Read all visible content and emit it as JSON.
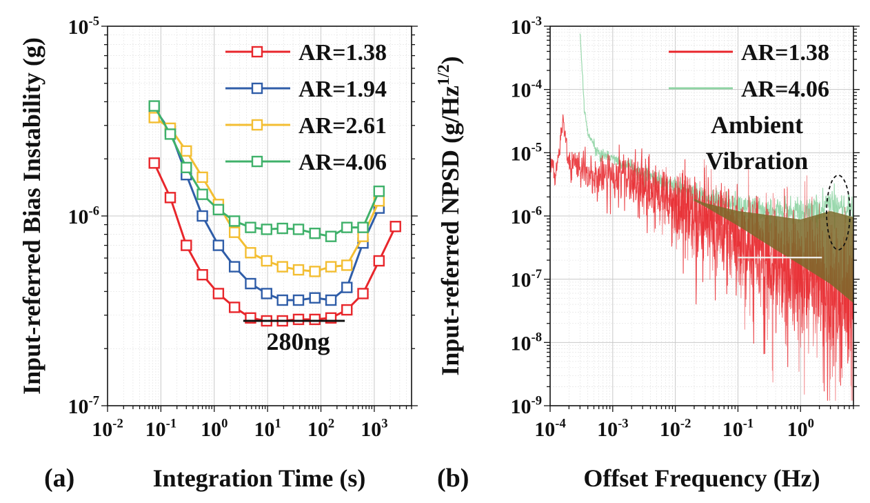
{
  "chart_data": [
    {
      "type": "line",
      "panel_label": "(a)",
      "xlabel": "Integration Time (s)",
      "ylabel": "Input-referred Bias Instability (g)",
      "x_scale": "log",
      "y_scale": "log",
      "xlim": [
        0.01,
        5000
      ],
      "ylim": [
        1e-07,
        1e-05
      ],
      "grid": true,
      "legend_position": "top-right",
      "x_ticks": [
        {
          "v": 0.01,
          "base": "10",
          "exp": "-2"
        },
        {
          "v": 0.1,
          "base": "10",
          "exp": "-1"
        },
        {
          "v": 1,
          "base": "10",
          "exp": "0"
        },
        {
          "v": 10,
          "base": "10",
          "exp": "1"
        },
        {
          "v": 100,
          "base": "10",
          "exp": "2"
        },
        {
          "v": 1000,
          "base": "10",
          "exp": "3"
        }
      ],
      "y_ticks": [
        {
          "v": 1e-07,
          "base": "10",
          "exp": "-7"
        },
        {
          "v": 1e-06,
          "base": "10",
          "exp": "-6"
        },
        {
          "v": 1e-05,
          "base": "10",
          "exp": "-5"
        }
      ],
      "series": [
        {
          "name": "AR=1.38",
          "color": "#e8262b",
          "x": [
            0.075,
            0.15,
            0.3,
            0.6,
            1.2,
            2.4,
            4.8,
            9.6,
            19,
            38,
            77,
            154,
            307,
            614,
            1228,
            2500
          ],
          "y": [
            1.9e-06,
            1.25e-06,
            7e-07,
            4.9e-07,
            3.9e-07,
            3.3e-07,
            2.9e-07,
            2.8e-07,
            2.8e-07,
            2.85e-07,
            2.85e-07,
            2.9e-07,
            3.2e-07,
            3.9e-07,
            5.8e-07,
            8.8e-07
          ]
        },
        {
          "name": "AR=1.94",
          "color": "#2f5da8",
          "x": [
            0.075,
            0.15,
            0.3,
            0.6,
            1.2,
            2.4,
            4.8,
            9.6,
            19,
            38,
            77,
            154,
            307,
            614,
            1228
          ],
          "y": [
            3.7e-06,
            2.8e-06,
            1.65e-06,
            1e-06,
            7e-07,
            5.4e-07,
            4.4e-07,
            3.9e-07,
            3.6e-07,
            3.6e-07,
            3.7e-07,
            3.6e-07,
            4.2e-07,
            7.2e-07,
            1.1e-06
          ]
        },
        {
          "name": "AR=2.61",
          "color": "#f3be32",
          "x": [
            0.075,
            0.15,
            0.3,
            0.6,
            1.2,
            2.4,
            4.8,
            9.6,
            19,
            38,
            77,
            154,
            307,
            614,
            1228
          ],
          "y": [
            3.3e-06,
            2.9e-06,
            2.2e-06,
            1.6e-06,
            1.15e-06,
            8.2e-07,
            6.4e-07,
            5.8e-07,
            5.4e-07,
            5.2e-07,
            5.1e-07,
            5.4e-07,
            5.5e-07,
            7.8e-07,
            1.2e-06
          ]
        },
        {
          "name": "AR=4.06",
          "color": "#3fb16a",
          "x": [
            0.075,
            0.15,
            0.3,
            0.6,
            1.2,
            2.4,
            4.8,
            9.6,
            19,
            38,
            77,
            154,
            307,
            614,
            1228
          ],
          "y": [
            3.8e-06,
            2.7e-06,
            1.8e-06,
            1.3e-06,
            1.08e-06,
            9.4e-07,
            8.7e-07,
            8.5e-07,
            8.6e-07,
            8.5e-07,
            8.1e-07,
            7.8e-07,
            8.7e-07,
            8.7e-07,
            1.35e-06
          ]
        }
      ],
      "annotation": {
        "text": "280ng",
        "x_range": [
          3.5,
          280
        ],
        "y": 2.8e-07
      }
    },
    {
      "type": "line",
      "panel_label": "(b)",
      "xlabel": "Offset Frequency (Hz)",
      "ylabel_main": "Input-referred NPSD (g/Hz",
      "ylabel_sup": "1/2",
      "ylabel_close": ")",
      "x_scale": "log",
      "y_scale": "log",
      "xlim": [
        0.0001,
        7
      ],
      "ylim": [
        1e-09,
        0.001
      ],
      "grid": true,
      "legend_position": "top-right",
      "x_ticks": [
        {
          "v": 0.0001,
          "base": "10",
          "exp": "-4"
        },
        {
          "v": 0.001,
          "base": "10",
          "exp": "-3"
        },
        {
          "v": 0.01,
          "base": "10",
          "exp": "-2"
        },
        {
          "v": 0.1,
          "base": "10",
          "exp": "-1"
        },
        {
          "v": 1,
          "base": "10",
          "exp": "0"
        }
      ],
      "y_ticks": [
        {
          "v": 1e-09,
          "base": "10",
          "exp": "-9"
        },
        {
          "v": 1e-08,
          "base": "10",
          "exp": "-8"
        },
        {
          "v": 1e-07,
          "base": "10",
          "exp": "-7"
        },
        {
          "v": 1e-06,
          "base": "10",
          "exp": "-6"
        },
        {
          "v": 1e-05,
          "base": "10",
          "exp": "-5"
        },
        {
          "v": 0.0001,
          "base": "10",
          "exp": "-4"
        },
        {
          "v": 0.001,
          "base": "10",
          "exp": "-3"
        }
      ],
      "series": [
        {
          "name": "AR=1.38",
          "color": "#e8262b",
          "x": [
            0.0001,
            0.00012,
            0.00016,
            0.0002,
            0.0003,
            0.0005,
            0.001,
            0.003,
            0.01,
            0.03,
            0.1,
            0.3,
            1,
            3,
            7
          ],
          "y": [
            1e-05,
            4e-06,
            3e-05,
            8e-06,
            7e-06,
            4e-06,
            5e-06,
            3e-06,
            1.8e-06,
            1e-06,
            5e-07,
            2.5e-07,
            1.2e-07,
            6e-08,
            3e-08
          ]
        },
        {
          "name": "AR=4.06",
          "color": "#8fd4a4",
          "x": [
            0.0003,
            0.00035,
            0.0004,
            0.0006,
            0.001,
            0.003,
            0.01,
            0.03,
            0.1,
            0.3,
            1,
            3,
            7
          ],
          "y": [
            0.0009,
            5e-05,
            2e-05,
            1e-05,
            8e-06,
            5e-06,
            3e-06,
            2e-06,
            1.5e-06,
            1.3e-06,
            1.1e-06,
            1.5e-06,
            1.2e-06
          ]
        }
      ],
      "annotation": {
        "lines": [
          "Ambient",
          "Vibration"
        ]
      }
    }
  ]
}
